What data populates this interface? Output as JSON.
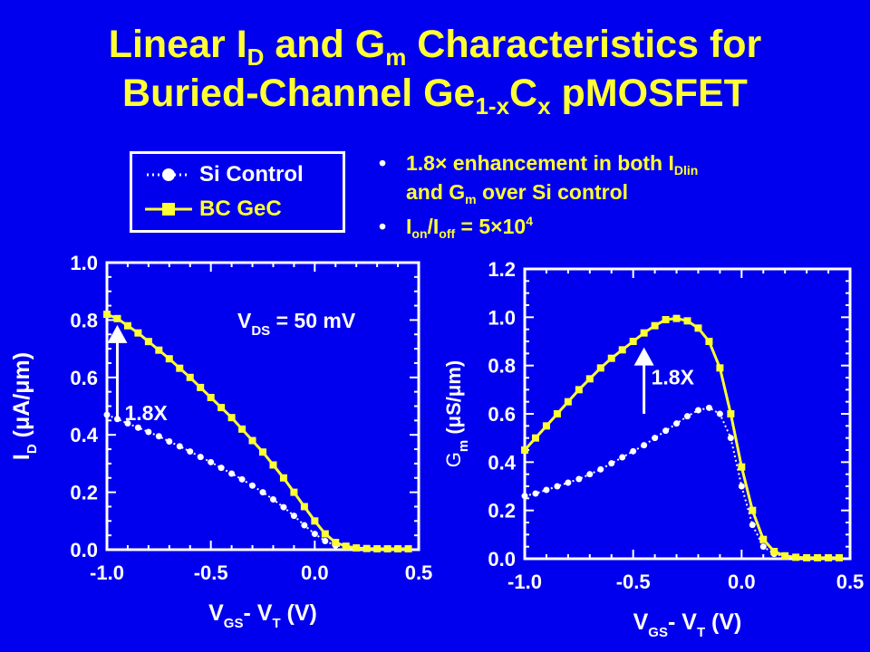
{
  "title": {
    "line1_a": "Linear I",
    "line1_sub1": "D",
    "line1_b": " and G",
    "line1_sub2": "m",
    "line1_c": " Characteristics for",
    "line2_a": "Buried-Channel Ge",
    "line2_sub1": "1-x",
    "line2_b": "C",
    "line2_sub2": "x",
    "line2_c": " pMOSFET"
  },
  "legend": {
    "si_label": "Si Control",
    "bc_label": "BC GeC"
  },
  "bullets": {
    "b1_prefix": "1.8×",
    "b1_a": " enhancement in both I",
    "b1_sub": "Dlin",
    "b1_line2_a": "and G",
    "b1_line2_sub": "m",
    "b1_line2_b": " over Si control",
    "b2_a": "I",
    "b2_sub1": "on",
    "b2_b": "/I",
    "b2_sub2": "off",
    "b2_c": " = 5×10",
    "b2_sup": "4"
  },
  "colors": {
    "background": "#0000ee",
    "title": "#ffff33",
    "si": "#ffffff",
    "bc": "#ffff33",
    "axis": "#ffffff"
  },
  "chart_data": [
    {
      "type": "line",
      "xlabel": {
        "main": "V",
        "sub1": "GS",
        "mid": "- V",
        "sub2": "T",
        "tail": " (V)"
      },
      "ylabel": {
        "main": "I",
        "sub": "D",
        "tail": " (μA/μm)"
      },
      "xlim": [
        -1.0,
        0.5
      ],
      "ylim": [
        0.0,
        1.0
      ],
      "xticks": [
        "-1.0",
        "-0.5",
        "0.0",
        "0.5"
      ],
      "xtick_values": [
        -1.0,
        -0.5,
        0.0,
        0.5
      ],
      "yticks": [
        "0.0",
        "0.2",
        "0.4",
        "0.6",
        "0.8",
        "1.0"
      ],
      "ytick_values": [
        0.0,
        0.2,
        0.4,
        0.6,
        0.8,
        1.0
      ],
      "annotation_vds": {
        "main": "V",
        "sub": "DS",
        "tail": " = 50 mV"
      },
      "arrow_label": "1.8X",
      "arrow": {
        "x": -0.95,
        "y_from": 0.46,
        "y_to": 0.77
      },
      "series": [
        {
          "name": "Si Control",
          "x": [
            -1.0,
            -0.95,
            -0.9,
            -0.85,
            -0.8,
            -0.75,
            -0.7,
            -0.65,
            -0.6,
            -0.55,
            -0.5,
            -0.45,
            -0.4,
            -0.35,
            -0.3,
            -0.25,
            -0.2,
            -0.15,
            -0.1,
            -0.05,
            0.0,
            0.05,
            0.1,
            0.15,
            0.2,
            0.25,
            0.3,
            0.35,
            0.4,
            0.45
          ],
          "y": [
            0.47,
            0.455,
            0.44,
            0.425,
            0.41,
            0.395,
            0.377,
            0.36,
            0.342,
            0.323,
            0.305,
            0.285,
            0.265,
            0.245,
            0.223,
            0.2,
            0.175,
            0.148,
            0.118,
            0.085,
            0.055,
            0.03,
            0.015,
            0.008,
            0.005,
            0.004,
            0.003,
            0.003,
            0.003,
            0.003
          ]
        },
        {
          "name": "BC GeC",
          "x": [
            -1.0,
            -0.95,
            -0.9,
            -0.85,
            -0.8,
            -0.75,
            -0.7,
            -0.65,
            -0.6,
            -0.55,
            -0.5,
            -0.45,
            -0.4,
            -0.35,
            -0.3,
            -0.25,
            -0.2,
            -0.15,
            -0.1,
            -0.05,
            0.0,
            0.05,
            0.1,
            0.15,
            0.2,
            0.25,
            0.3,
            0.35,
            0.4,
            0.45
          ],
          "y": [
            0.82,
            0.805,
            0.78,
            0.755,
            0.725,
            0.695,
            0.665,
            0.632,
            0.6,
            0.565,
            0.53,
            0.495,
            0.46,
            0.42,
            0.38,
            0.34,
            0.295,
            0.25,
            0.2,
            0.15,
            0.1,
            0.055,
            0.025,
            0.012,
            0.006,
            0.004,
            0.003,
            0.003,
            0.003,
            0.003
          ]
        }
      ]
    },
    {
      "type": "line",
      "xlabel": {
        "main": "V",
        "sub1": "GS",
        "mid": "- V",
        "sub2": "T",
        "tail": " (V)"
      },
      "ylabel": {
        "main": "G",
        "sub": "m",
        "tail": " (μS/μm)"
      },
      "xlim": [
        -1.0,
        0.5
      ],
      "ylim": [
        0.0,
        1.2
      ],
      "xticks": [
        "-1.0",
        "-0.5",
        "0.0",
        "0.5"
      ],
      "xtick_values": [
        -1.0,
        -0.5,
        0.0,
        0.5
      ],
      "yticks": [
        "0.0",
        "0.2",
        "0.4",
        "0.6",
        "0.8",
        "1.0",
        "1.2"
      ],
      "ytick_values": [
        0.0,
        0.2,
        0.4,
        0.6,
        0.8,
        1.0,
        1.2
      ],
      "arrow_label": "1.8X",
      "arrow": {
        "x": -0.45,
        "y_from": 0.6,
        "y_to": 0.86
      },
      "series": [
        {
          "name": "Si Control",
          "x": [
            -1.0,
            -0.95,
            -0.9,
            -0.85,
            -0.8,
            -0.75,
            -0.7,
            -0.65,
            -0.6,
            -0.55,
            -0.5,
            -0.45,
            -0.4,
            -0.35,
            -0.3,
            -0.25,
            -0.2,
            -0.15,
            -0.1,
            -0.05,
            0.0,
            0.05,
            0.1,
            0.15,
            0.2,
            0.25,
            0.3,
            0.35,
            0.4,
            0.45
          ],
          "y": [
            0.26,
            0.27,
            0.285,
            0.3,
            0.315,
            0.33,
            0.35,
            0.37,
            0.395,
            0.42,
            0.445,
            0.47,
            0.5,
            0.53,
            0.56,
            0.59,
            0.615,
            0.625,
            0.6,
            0.5,
            0.3,
            0.14,
            0.05,
            0.02,
            0.01,
            0.005,
            0.004,
            0.004,
            0.004,
            0.004
          ]
        },
        {
          "name": "BC GeC",
          "x": [
            -1.0,
            -0.95,
            -0.9,
            -0.85,
            -0.8,
            -0.75,
            -0.7,
            -0.65,
            -0.6,
            -0.55,
            -0.5,
            -0.45,
            -0.4,
            -0.35,
            -0.3,
            -0.25,
            -0.2,
            -0.15,
            -0.1,
            -0.05,
            0.0,
            0.05,
            0.1,
            0.15,
            0.2,
            0.25,
            0.3,
            0.35,
            0.4,
            0.45
          ],
          "y": [
            0.45,
            0.5,
            0.55,
            0.6,
            0.65,
            0.7,
            0.745,
            0.79,
            0.83,
            0.865,
            0.9,
            0.935,
            0.965,
            0.99,
            0.995,
            0.985,
            0.955,
            0.9,
            0.79,
            0.6,
            0.38,
            0.2,
            0.08,
            0.03,
            0.012,
            0.006,
            0.004,
            0.004,
            0.004,
            0.004
          ]
        }
      ]
    }
  ]
}
